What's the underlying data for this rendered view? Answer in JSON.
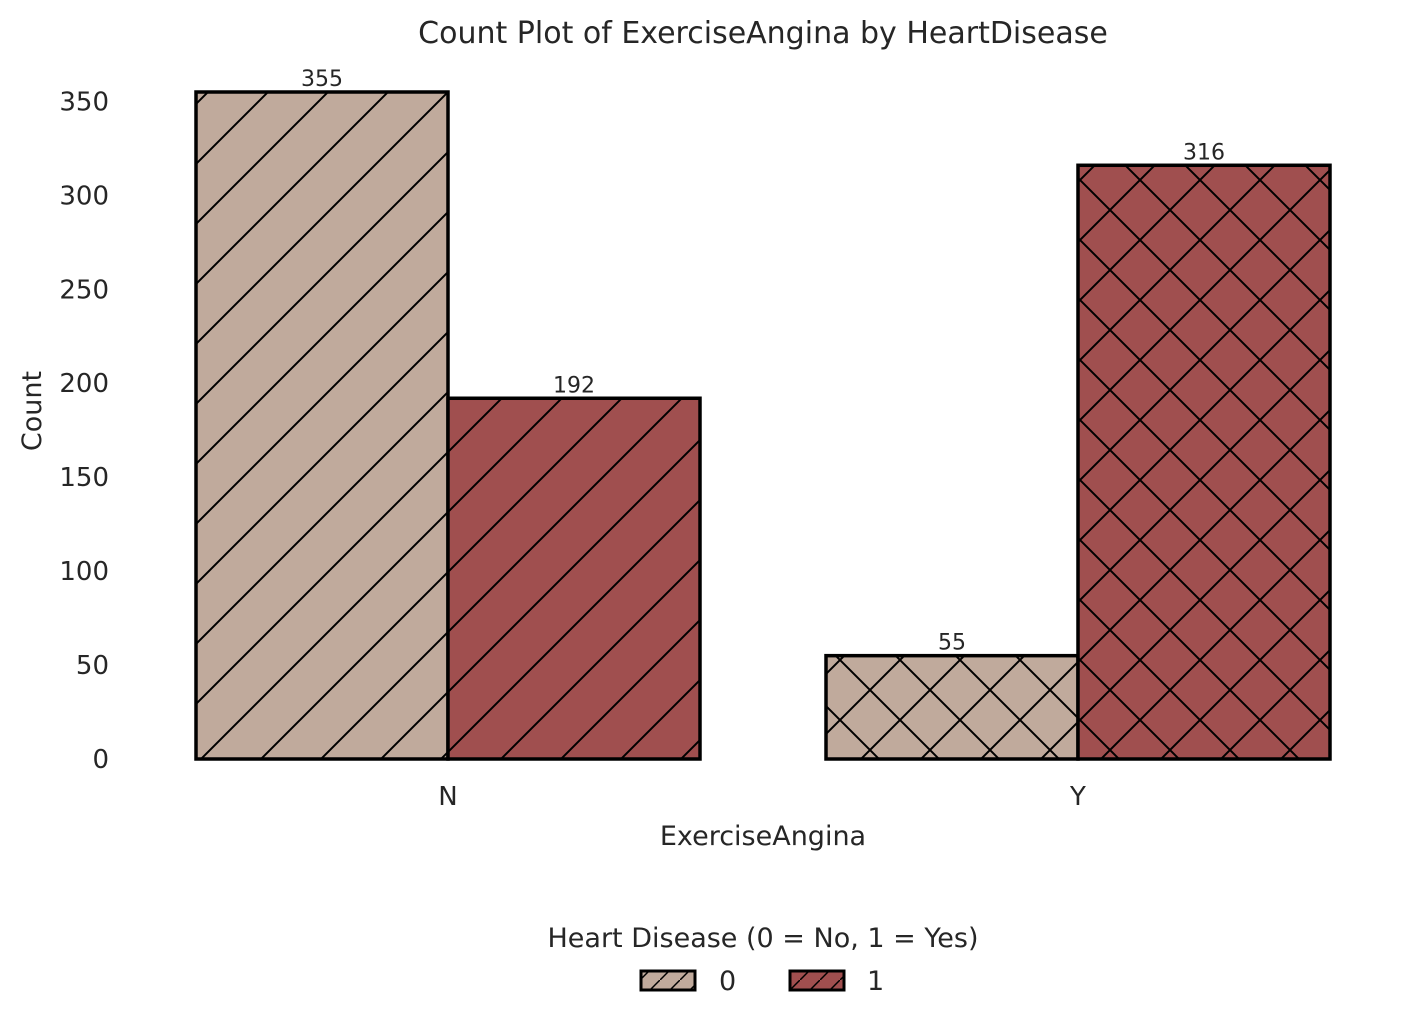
{
  "chart_data": {
    "type": "bar",
    "title": "Count Plot of ExerciseAngina by HeartDisease",
    "xlabel": "ExerciseAngina",
    "ylabel": "Count",
    "categories": [
      "N",
      "Y"
    ],
    "series": [
      {
        "name": "0",
        "values": [
          355,
          55
        ],
        "color": "#c0aa9c",
        "hatch": [
          "diagonal",
          "crosshatch"
        ]
      },
      {
        "name": "1",
        "values": [
          192,
          316
        ],
        "color": "#a04f4f",
        "hatch": [
          "diagonal",
          "crosshatch"
        ]
      }
    ],
    "yticks": [
      0,
      50,
      100,
      150,
      200,
      250,
      300,
      350
    ],
    "ylim": [
      0,
      355
    ],
    "grid": false,
    "legend": {
      "title": "Heart Disease (0 = No, 1 = Yes)",
      "entries": [
        "0",
        "1"
      ],
      "placement": "bottom-center"
    },
    "data_labels": [
      "355",
      "192",
      "55",
      "316"
    ]
  }
}
